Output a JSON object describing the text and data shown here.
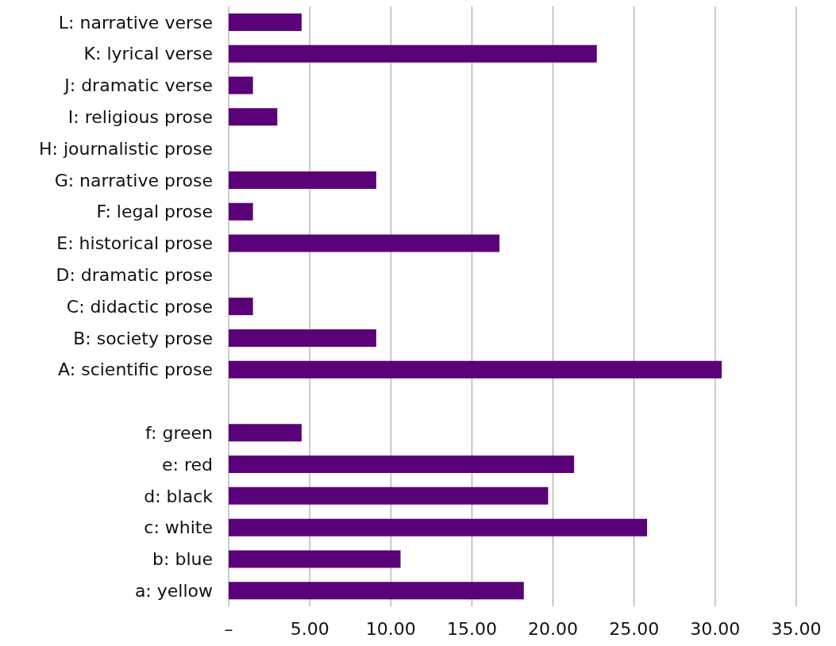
{
  "chart_data": {
    "type": "bar",
    "orientation": "horizontal",
    "categories": [
      "L: narrative verse",
      "K: lyrical verse",
      "J: dramatic verse",
      "I: religious prose",
      "H: journalistic prose",
      "G: narrative prose",
      "F: legal prose",
      "E: historical prose",
      "D: dramatic prose",
      "C: didactic prose",
      "B: society prose",
      "A: scientific prose",
      null,
      "f: green",
      "e: red",
      "d: black",
      "c: white",
      "b: blue",
      "a: yellow"
    ],
    "values": [
      4.5,
      22.7,
      1.5,
      3.0,
      0,
      9.1,
      1.5,
      16.7,
      0,
      1.5,
      9.1,
      30.4,
      null,
      4.5,
      21.3,
      19.7,
      25.8,
      10.6,
      18.2
    ],
    "color": "#5a0079",
    "xlim": [
      0,
      35
    ],
    "xticks": [
      {
        "value": 0,
        "label": "–"
      },
      {
        "value": 5,
        "label": "5.00"
      },
      {
        "value": 10,
        "label": "10.00"
      },
      {
        "value": 15,
        "label": "15.00"
      },
      {
        "value": 20,
        "label": "20.00"
      },
      {
        "value": 25,
        "label": "25.00"
      },
      {
        "value": 30,
        "label": "30.00"
      },
      {
        "value": 35,
        "label": "35.00"
      }
    ],
    "grid": "x",
    "legend": false
  }
}
